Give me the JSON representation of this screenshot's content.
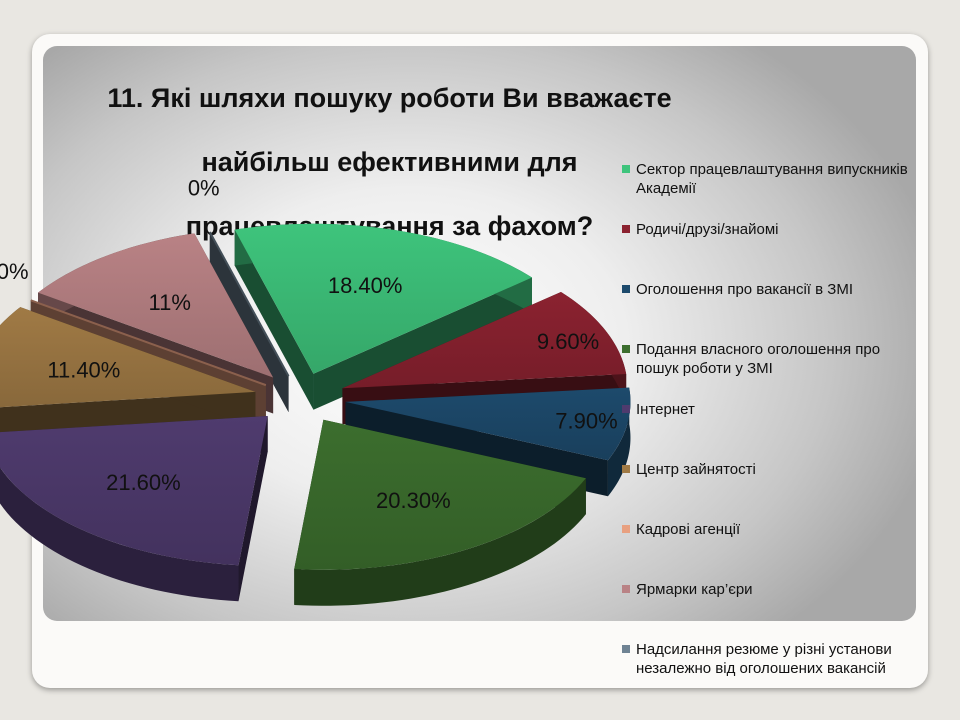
{
  "title_lines": [
    "11. Які шляхи пошуку роботи Ви вважаєте",
    "найбільш ефективними для",
    "працевлаштування за фахом?"
  ],
  "chart_data": {
    "type": "pie",
    "title": "11. Які шляхи пошуку роботи Ви вважаєте найбільш ефективними для працевлаштування за фахом?",
    "legend_position": "right",
    "three_d": true,
    "exploded": true,
    "slices": [
      {
        "name": "Сектор працевлаштування випускників Академії",
        "value": 18.4,
        "label": "18.40%",
        "color": "#3ec47c"
      },
      {
        "name": "Родичі/друзі/знайомі",
        "value": 9.6,
        "label": "9.60%",
        "color": "#8b2230"
      },
      {
        "name": "Оголошення про вакансії в ЗМІ",
        "value": 7.9,
        "label": "7.90%",
        "color": "#1d4a6c"
      },
      {
        "name": "Подання власного оголошення про пошук роботи у ЗМІ",
        "value": 20.3,
        "label": "20.30%",
        "color": "#3c6e2e"
      },
      {
        "name": "Інтернет",
        "value": 21.6,
        "label": "21.60%",
        "color": "#4f3b6e"
      },
      {
        "name": "Центр зайнятості",
        "value": 11.4,
        "label": "11.40%",
        "color": "#a07a45"
      },
      {
        "name": "Кадрові агенції",
        "value": 0,
        "label": "0%",
        "color": "#e8a080"
      },
      {
        "name": "Ярмарки кар’єри",
        "value": 11,
        "label": "11%",
        "color": "#b98285"
      },
      {
        "name": "Надсилання резюме у різні установи незалежно від оголошених вакансій",
        "value": 0,
        "label": "0%",
        "color": "#6f8393"
      }
    ]
  }
}
